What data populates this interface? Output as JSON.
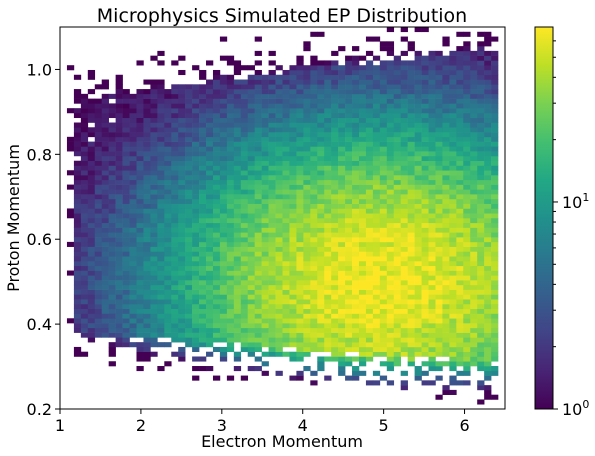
{
  "chart_data": {
    "type": "heatmap",
    "title": "Microphysics Simulated EP Distribution",
    "xlabel": "Electron Momentum",
    "ylabel": "Proton Momentum",
    "xlim": [
      1.0,
      6.5
    ],
    "ylim": [
      0.2,
      1.1
    ],
    "x_ticks": [
      "1",
      "2",
      "3",
      "4",
      "5",
      "6"
    ],
    "y_ticks": [
      "0.2",
      "0.4",
      "0.6",
      "0.8",
      "1.0"
    ],
    "bins": {
      "x": 64,
      "y": 80
    },
    "colormap": "viridis",
    "colorbar": {
      "scale": "log",
      "range": [
        1,
        70
      ],
      "tick_values": [
        1,
        10
      ],
      "tick_labels": [
        {
          "base": "10",
          "exp": "0"
        },
        {
          "base": "10",
          "exp": "1"
        }
      ]
    },
    "distribution": {
      "x_start": 1.2,
      "x_end": 6.4,
      "band_center": 0.62,
      "band_lower_start": 0.38,
      "band_lower_end": 0.31,
      "band_upper_start": 0.93,
      "band_upper_end": 1.05,
      "peak_x": 5.0,
      "peak_y": 0.5,
      "peak_count": 65
    },
    "colors": {
      "viridis_low": "#440154",
      "viridis_mid": "#21918c",
      "viridis_high": "#fde725"
    }
  }
}
